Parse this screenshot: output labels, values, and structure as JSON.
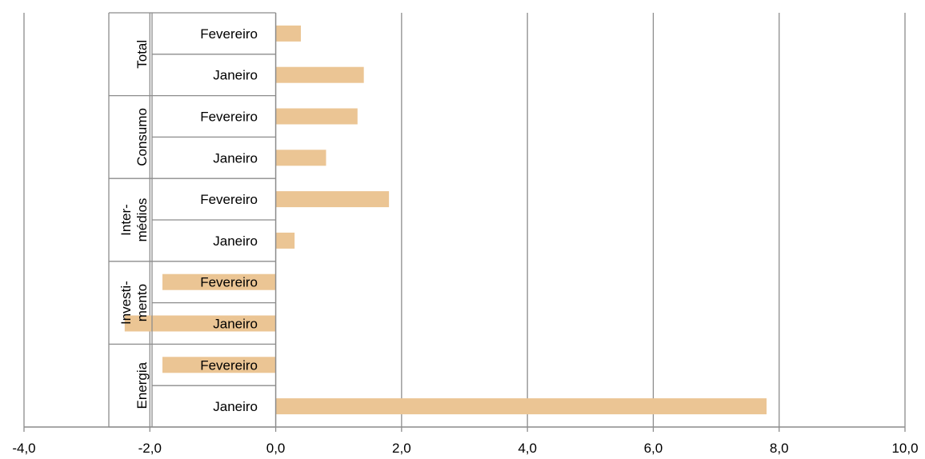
{
  "chart_data": {
    "type": "bar",
    "orientation": "horizontal",
    "xlim": [
      -4,
      10
    ],
    "x_ticks": [
      "-4,0",
      "-2,0",
      "0,0",
      "2,0",
      "4,0",
      "6,0",
      "8,0",
      "10,0"
    ],
    "grid": true,
    "bar_color": "#EBC594",
    "gridline_color": "#8c8c8c",
    "groups": [
      {
        "name_lines": [
          "Total"
        ],
        "items": [
          {
            "label": "Fevereiro",
            "value": 0.4
          },
          {
            "label": "Janeiro",
            "value": 1.4
          }
        ]
      },
      {
        "name_lines": [
          "Consumo"
        ],
        "items": [
          {
            "label": "Fevereiro",
            "value": 1.3
          },
          {
            "label": "Janeiro",
            "value": 0.8
          }
        ]
      },
      {
        "name_lines": [
          "Inter-",
          "médios"
        ],
        "items": [
          {
            "label": "Fevereiro",
            "value": 1.8
          },
          {
            "label": "Janeiro",
            "value": 0.3
          }
        ]
      },
      {
        "name_lines": [
          "Investi-",
          "mento"
        ],
        "items": [
          {
            "label": "Fevereiro",
            "value": -1.8
          },
          {
            "label": "Janeiro",
            "value": -2.4
          }
        ]
      },
      {
        "name_lines": [
          "Energia"
        ],
        "items": [
          {
            "label": "Fevereiro",
            "value": -1.8
          },
          {
            "label": "Janeiro",
            "value": 7.8
          }
        ]
      }
    ]
  }
}
